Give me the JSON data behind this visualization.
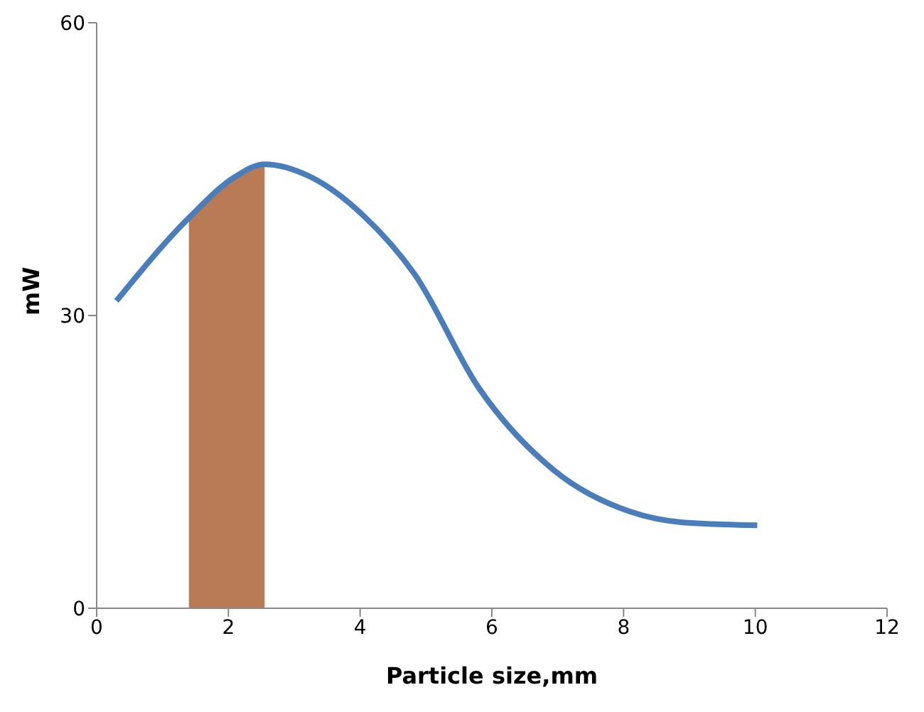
{
  "chart_data": {
    "type": "line",
    "xlabel": "Particle size,mm",
    "ylabel": "mW",
    "series": [
      {
        "type": "area",
        "color": "#b97a56",
        "x": [
          1.4,
          1.8,
          2.1,
          2.55
        ],
        "values": [
          40,
          42.5,
          44.2,
          45.5
        ]
      },
      {
        "color": "#4a7ebb",
        "x": [
          0.3,
          1.4,
          2.1,
          2.55,
          3.25,
          4.04,
          4.83,
          5.8,
          6.95,
          8.1,
          8.9,
          10.03
        ],
        "values": [
          31.5,
          40,
          44.2,
          45.5,
          44.2,
          40.3,
          34.2,
          22.6,
          14.1,
          9.9,
          8.8,
          8.5
        ]
      }
    ],
    "xlim": [
      0,
      12
    ],
    "xticks": [
      0,
      2,
      4,
      6,
      8,
      10,
      12
    ],
    "ylim": [
      0,
      60
    ],
    "yticks": [
      0,
      30,
      60
    ],
    "grid": false,
    "legend": false,
    "marker": "none",
    "line_style": "solid"
  }
}
